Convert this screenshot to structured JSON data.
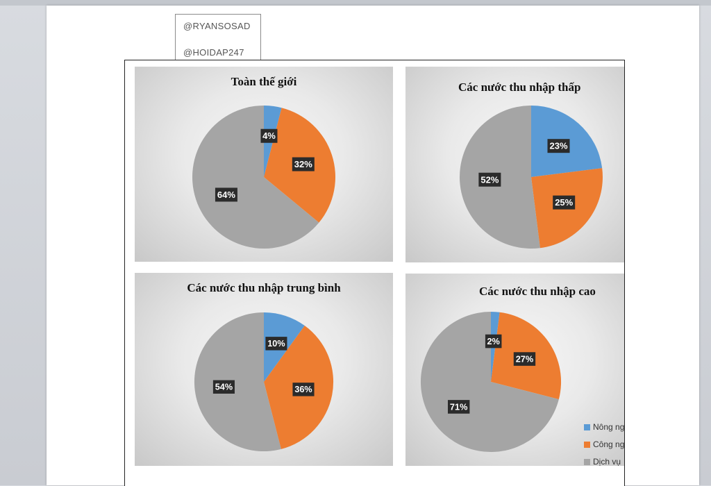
{
  "watermarks": [
    "@RYANSOSAD",
    "@HOIDAP247"
  ],
  "legend": [
    {
      "label": "Nông ng",
      "color": "#5b9bd5"
    },
    {
      "label": "Công ng",
      "color": "#ed7d31"
    },
    {
      "label": "Dịch vụ",
      "color": "#a5a5a5"
    }
  ],
  "chart_data": [
    {
      "type": "pie",
      "title": "Toàn thế giới",
      "categories": [
        "Nông ng",
        "Công ng",
        "Dịch vụ"
      ],
      "values": [
        4,
        32,
        64
      ],
      "labels": [
        "4%",
        "32%",
        "64%"
      ],
      "colors": [
        "#5b9bd5",
        "#ed7d31",
        "#a5a5a5"
      ]
    },
    {
      "type": "pie",
      "title": "Các nước thu nhập thấp",
      "categories": [
        "Nông ng",
        "Công ng",
        "Dịch vụ"
      ],
      "values": [
        23,
        25,
        52
      ],
      "labels": [
        "23%",
        "25%",
        "52%"
      ],
      "colors": [
        "#5b9bd5",
        "#ed7d31",
        "#a5a5a5"
      ]
    },
    {
      "type": "pie",
      "title": "Các nước thu nhập trung bình",
      "categories": [
        "Nông ng",
        "Công ng",
        "Dịch vụ"
      ],
      "values": [
        10,
        36,
        54
      ],
      "labels": [
        "10%",
        "36%",
        "54%"
      ],
      "colors": [
        "#5b9bd5",
        "#ed7d31",
        "#a5a5a5"
      ]
    },
    {
      "type": "pie",
      "title": "Các nước thu nhập cao",
      "categories": [
        "Nông ng",
        "Công ng",
        "Dịch vụ"
      ],
      "values": [
        2,
        27,
        71
      ],
      "labels": [
        "2%",
        "27%",
        "71%"
      ],
      "colors": [
        "#5b9bd5",
        "#ed7d31",
        "#a5a5a5"
      ]
    }
  ]
}
